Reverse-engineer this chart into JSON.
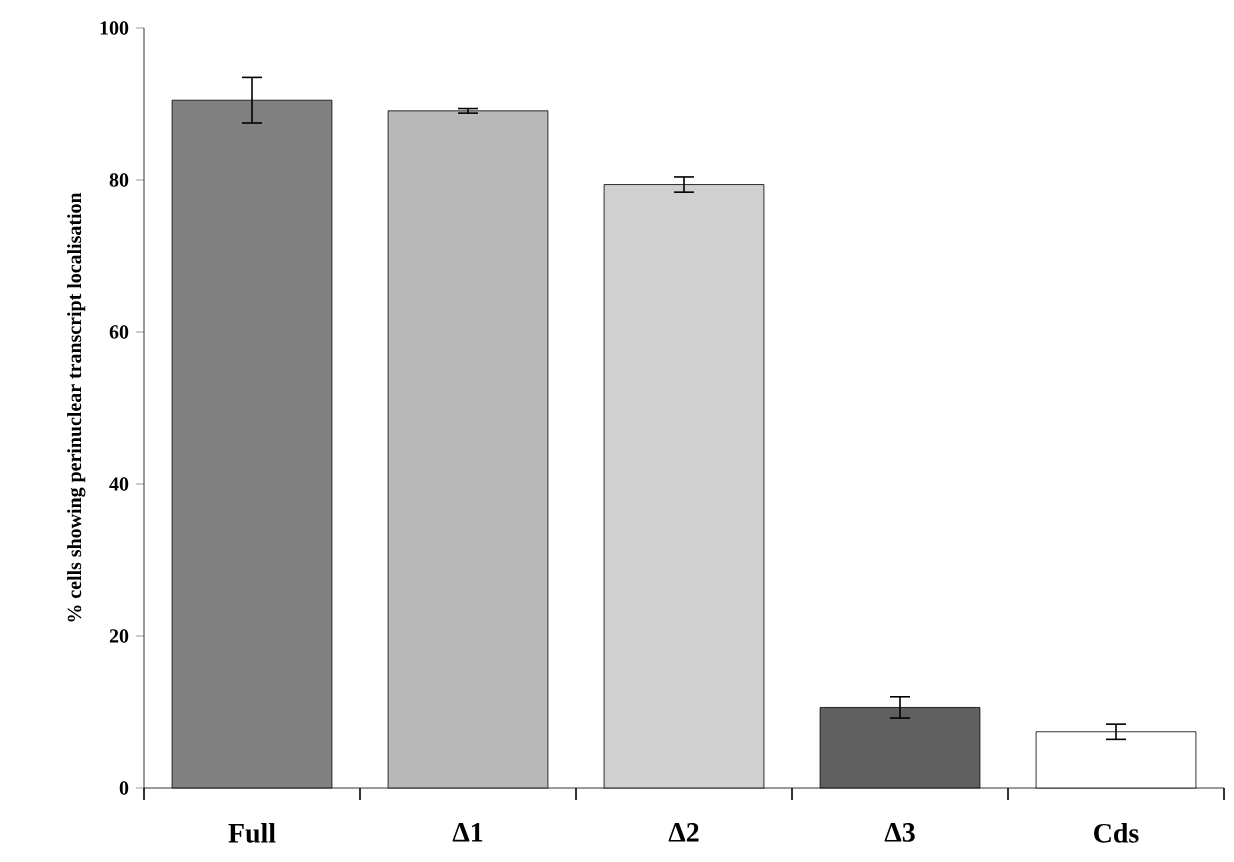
{
  "chart_data": {
    "type": "bar",
    "ylabel": "% cells showing perinuclear transcript localisation",
    "categories": [
      "Full",
      "Δ1",
      "Δ2",
      "Δ3",
      "Cds"
    ],
    "values": [
      90.5,
      89.1,
      79.4,
      10.6,
      7.4
    ],
    "errors": [
      3,
      0.3,
      1,
      1.4,
      1
    ],
    "colors": [
      "#808080",
      "#b8b8b8",
      "#d0d0d0",
      "#606060",
      "#ffffff"
    ],
    "ylim": [
      0,
      100
    ],
    "yticks": [
      0,
      20,
      40,
      60,
      80,
      100
    ],
    "grid": false
  }
}
